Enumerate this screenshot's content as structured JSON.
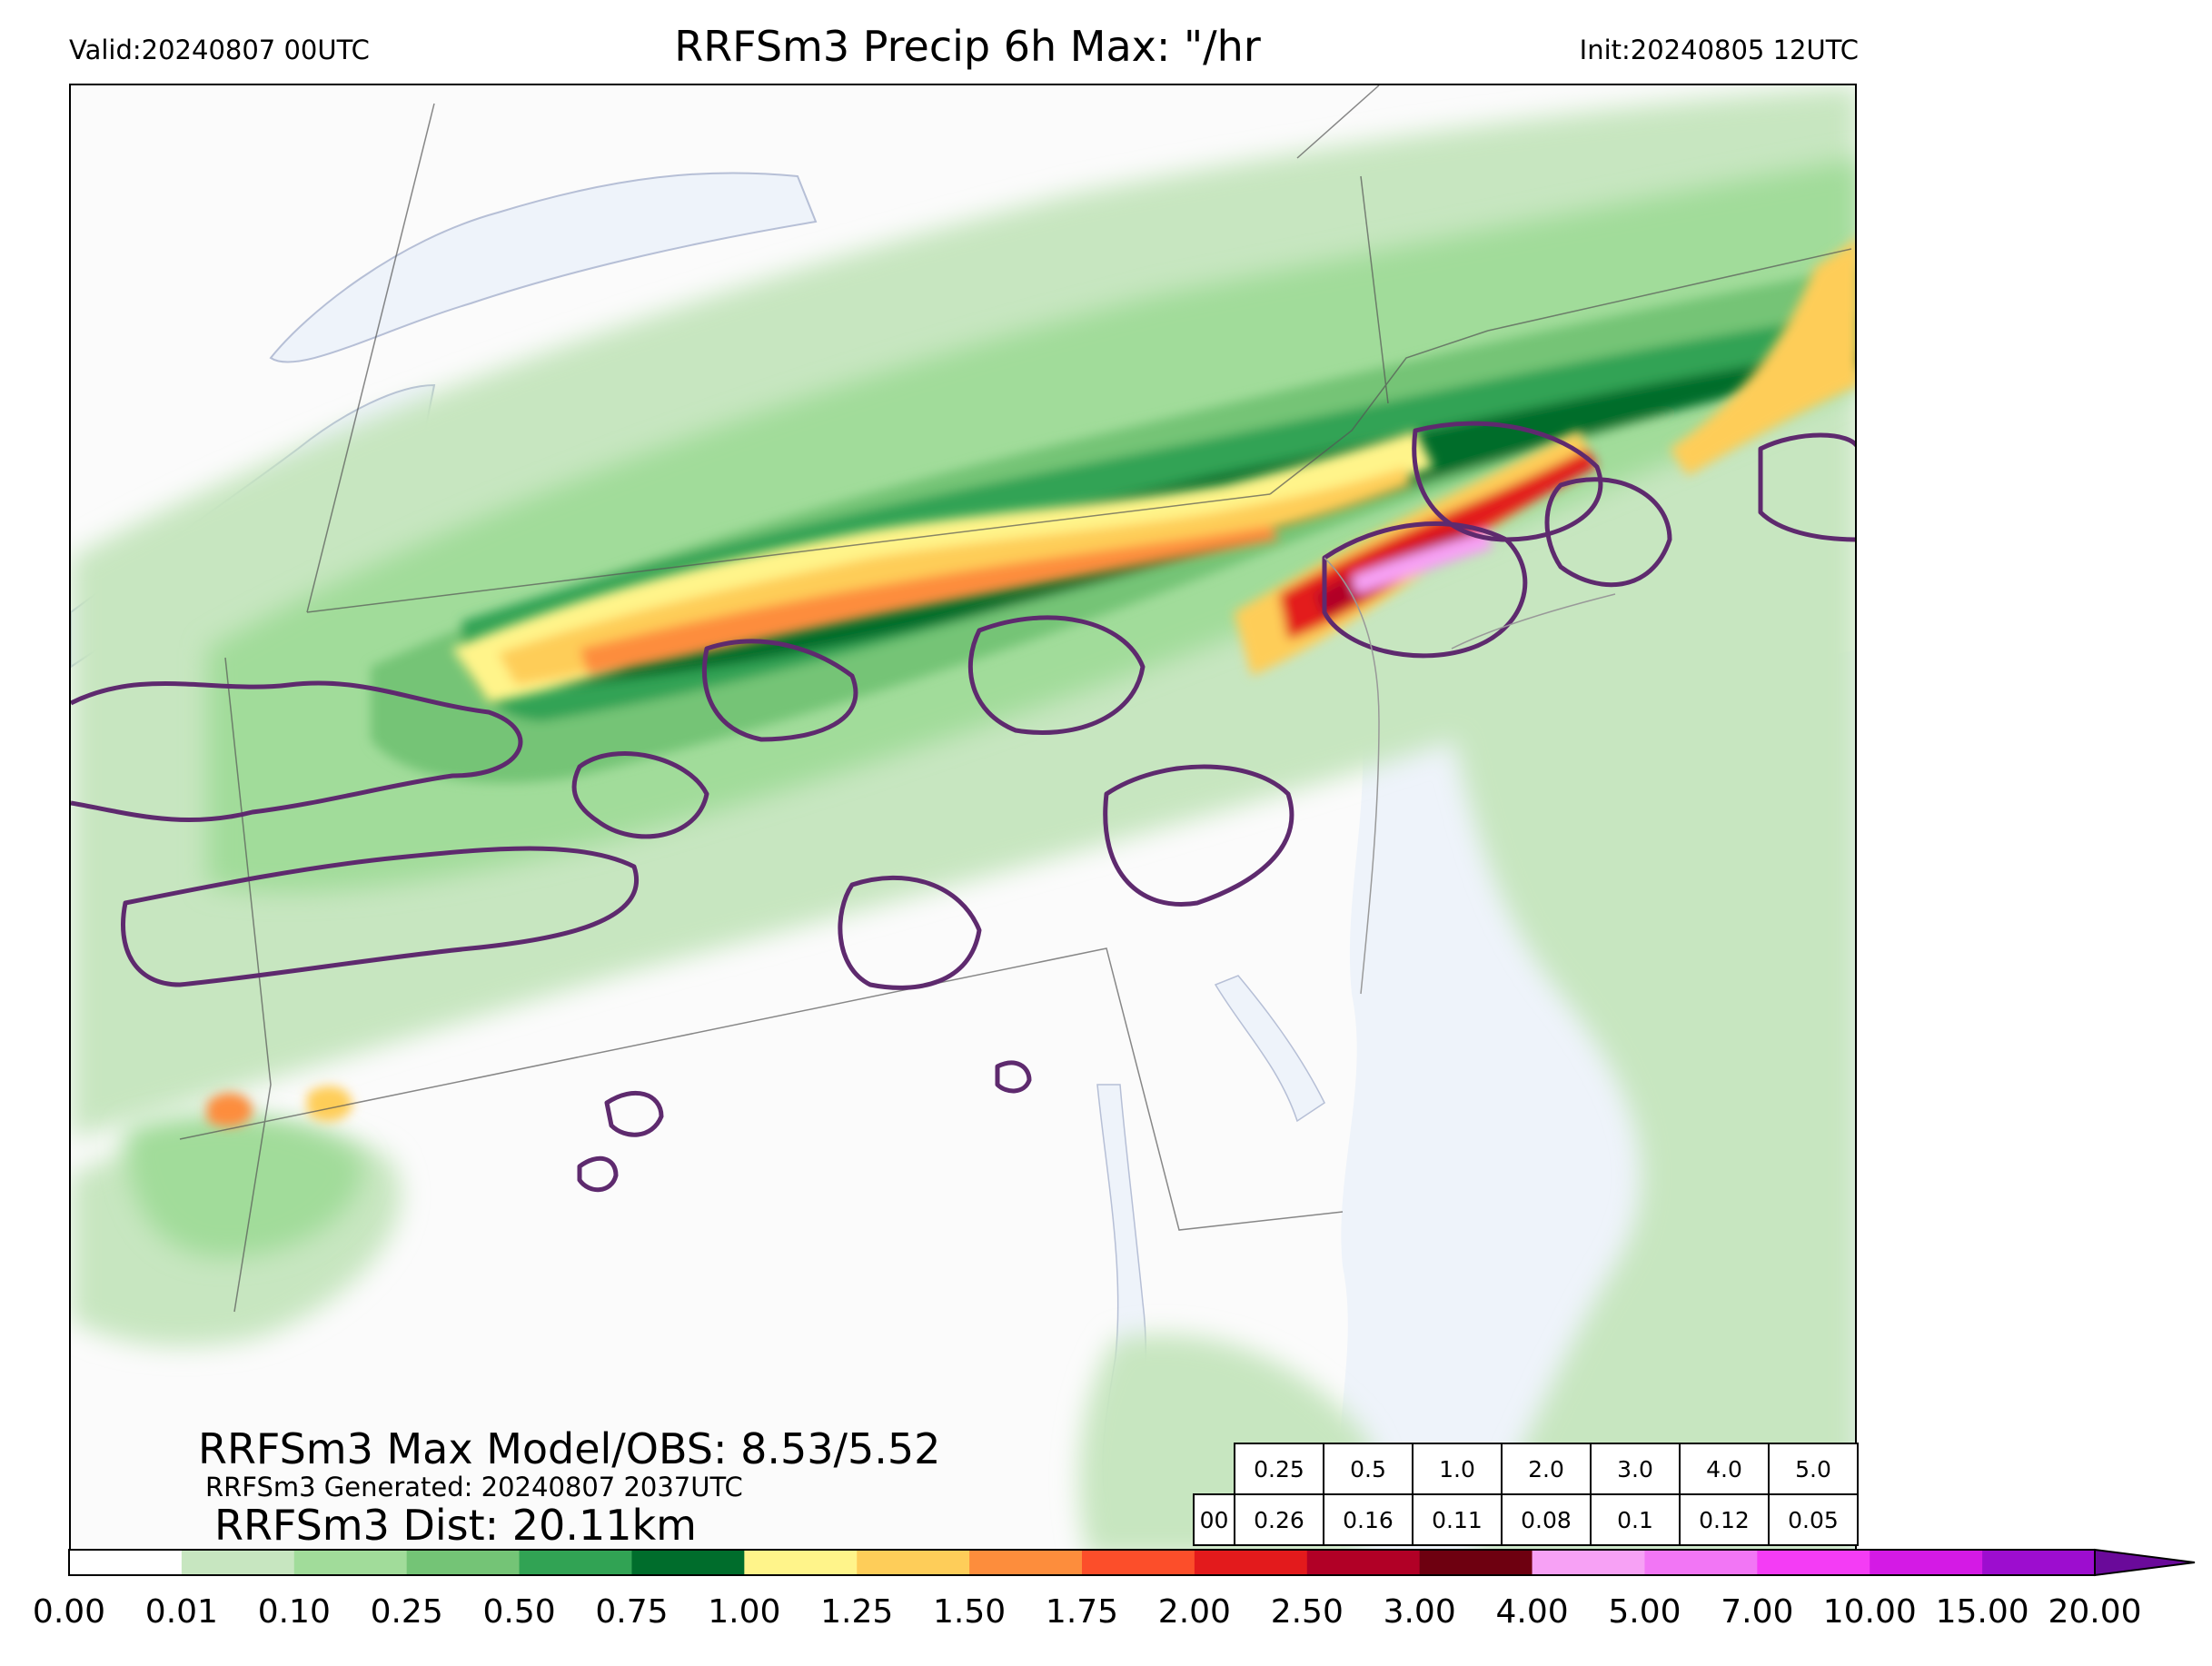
{
  "header": {
    "valid": "Valid:20240807 00UTC",
    "title": "RRFSm3 Precip 6h Max: \"/hr",
    "init": "Init:20240805 12UTC"
  },
  "stats": {
    "max_model_obs": "RRFSm3 Max Model/OBS: 8.53/5.52",
    "generated": "RRFSm3 Generated: 20240807 2037UTC",
    "dist": "RRFSm3 Dist: 20.11km"
  },
  "threshold_table": {
    "thresholds": [
      "0.25",
      "0.5",
      "1.0",
      "2.0",
      "3.0",
      "4.0",
      "5.0"
    ],
    "row_label": "00",
    "scores": [
      "0.26",
      "0.16",
      "0.11",
      "0.08",
      "0.1",
      "0.12",
      "0.05"
    ]
  },
  "colorbar": {
    "ticks": [
      "0.00",
      "0.01",
      "0.10",
      "0.25",
      "0.50",
      "0.75",
      "1.00",
      "1.25",
      "1.50",
      "1.75",
      "2.00",
      "2.50",
      "3.00",
      "4.00",
      "5.00",
      "7.00",
      "10.00",
      "15.00",
      "20.00"
    ],
    "colors": [
      "#ffffff",
      "#c7e6c0",
      "#a1dc9a",
      "#74c476",
      "#31a354",
      "#006d2c",
      "#fff48a",
      "#fecd59",
      "#fd8d3c",
      "#fc4e2a",
      "#e31a1c",
      "#b10026",
      "#6e0010",
      "#f7a1f5",
      "#f276f5",
      "#f43cf5",
      "#d41ae5",
      "#9d0dcf"
    ],
    "extend_color": "#6a0a9a"
  },
  "map": {
    "water_color": "#eef3fa",
    "obs_contour_color": "#5e2a6e"
  }
}
